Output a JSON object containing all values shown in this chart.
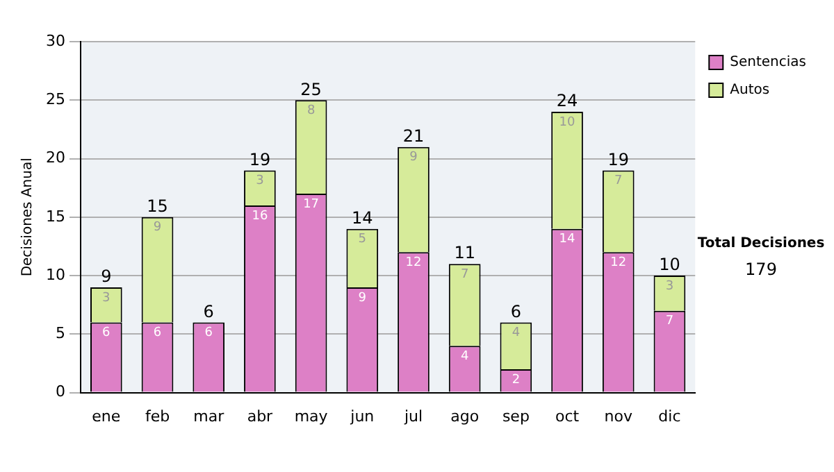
{
  "chart_data": {
    "type": "bar",
    "stacked": true,
    "ylabel": "Decisiones Anual",
    "categories": [
      "ene",
      "feb",
      "mar",
      "abr",
      "may",
      "jun",
      "jul",
      "ago",
      "sep",
      "oct",
      "nov",
      "dic"
    ],
    "series": [
      {
        "name": "Sentencias",
        "color": "#dd80c6",
        "values": [
          6,
          6,
          6,
          16,
          17,
          9,
          12,
          4,
          2,
          14,
          12,
          7
        ]
      },
      {
        "name": "Autos",
        "color": "#d6eb9a",
        "values": [
          3,
          9,
          null,
          3,
          8,
          5,
          9,
          7,
          4,
          10,
          7,
          3
        ]
      }
    ],
    "totals": [
      "9",
      "15",
      "6",
      "19",
      "25",
      "14",
      "21",
      "11",
      "6",
      "24",
      "19",
      "10"
    ],
    "data_labels": true,
    "ylim": [
      0,
      30
    ],
    "yticks": [
      0,
      5,
      10,
      15,
      20,
      25,
      30
    ],
    "grid": "y",
    "legend": "right",
    "annotations": [
      "Total Decisiones",
      "179"
    ]
  }
}
